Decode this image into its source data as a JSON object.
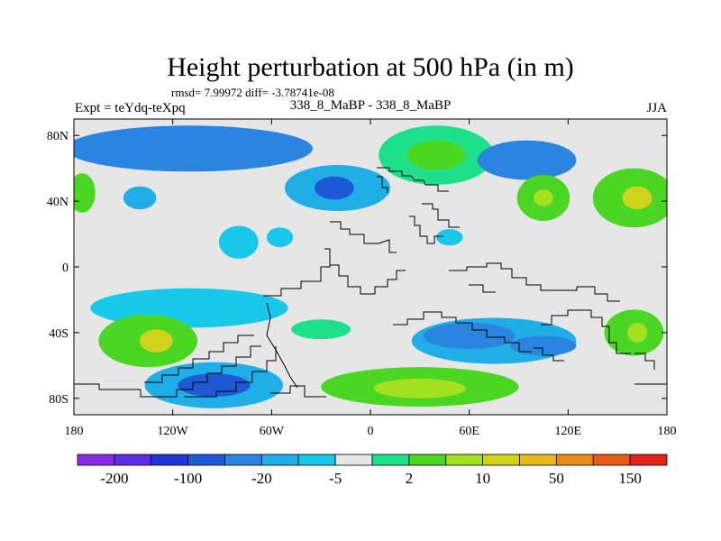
{
  "chart_data": {
    "type": "heatmap",
    "title": "Height perturbation at 500 hPa (in m)",
    "stats_label": "rmsd= 7.99972 diff= -3.78741e-08",
    "left_label": "Expt = teYdq-teXpq",
    "center_label": "338_8_MaBP - 338_8_MaBP",
    "right_label": "JJA",
    "xlim": [
      -180,
      180
    ],
    "ylim": [
      -90,
      90
    ],
    "x_ticks": [
      {
        "value": -180,
        "label": "180"
      },
      {
        "value": -120,
        "label": "120W"
      },
      {
        "value": -60,
        "label": "60W"
      },
      {
        "value": 0,
        "label": "0"
      },
      {
        "value": 60,
        "label": "60E"
      },
      {
        "value": 120,
        "label": "120E"
      },
      {
        "value": 180,
        "label": "180"
      }
    ],
    "y_ticks": [
      {
        "value": 80,
        "label": "80N"
      },
      {
        "value": 40,
        "label": "40N"
      },
      {
        "value": 0,
        "label": "0"
      },
      {
        "value": -40,
        "label": "40S"
      },
      {
        "value": -80,
        "label": "80S"
      }
    ],
    "colorbar": {
      "colors": [
        "#8a2be2",
        "#5a2ee0",
        "#2436d8",
        "#1f5ad6",
        "#2a85e0",
        "#20aee6",
        "#18c8e8",
        "#e6e6e6",
        "#1ee08a",
        "#4cd624",
        "#a2e020",
        "#cfd41a",
        "#e6b81c",
        "#e88a1a",
        "#e85a18",
        "#e0241a"
      ],
      "labels": [
        {
          "index": 1,
          "text": "-200"
        },
        {
          "index": 3,
          "text": "-100"
        },
        {
          "index": 5,
          "text": "-20"
        },
        {
          "index": 7,
          "text": "-5"
        },
        {
          "index": 9,
          "text": "2"
        },
        {
          "index": 11,
          "text": "10"
        },
        {
          "index": 13,
          "text": "50"
        },
        {
          "index": 15,
          "text": "150"
        }
      ]
    },
    "features": [
      {
        "name": "arctic-band-west",
        "lon": -110,
        "lat": 72,
        "rlon": 75,
        "rlat": 14,
        "level": -3
      },
      {
        "name": "arctic-high-east",
        "lon": 40,
        "lat": 68,
        "rlon": 35,
        "rlat": 18,
        "level": 1
      },
      {
        "name": "arctic-high-east-core",
        "lon": 40,
        "lat": 68,
        "rlon": 18,
        "rlat": 9,
        "level": 2
      },
      {
        "name": "north-atlantic-low",
        "lon": -20,
        "lat": 48,
        "rlon": 32,
        "rlat": 14,
        "level": -2
      },
      {
        "name": "north-atlantic-low-core",
        "lon": -22,
        "lat": 48,
        "rlon": 12,
        "rlat": 7,
        "level": -4
      },
      {
        "name": "asia-low",
        "lon": 95,
        "lat": 65,
        "rlon": 30,
        "rlat": 12,
        "level": -3
      },
      {
        "name": "north-pacific-high",
        "lon": 160,
        "lat": 42,
        "rlon": 25,
        "rlat": 18,
        "level": 2
      },
      {
        "name": "north-pacific-high-core",
        "lon": 162,
        "lat": 42,
        "rlon": 9,
        "rlat": 7,
        "level": 4
      },
      {
        "name": "west-pacific-high",
        "lon": 105,
        "lat": 42,
        "rlon": 16,
        "rlat": 14,
        "level": 2
      },
      {
        "name": "west-pacific-core",
        "lon": 105,
        "lat": 42,
        "rlon": 6,
        "rlat": 5,
        "level": 3
      },
      {
        "name": "dateline-high-west",
        "lon": -175,
        "lat": 45,
        "rlon": 8,
        "rlat": 12,
        "level": 2
      },
      {
        "name": "na-low",
        "lon": -140,
        "lat": 42,
        "rlon": 10,
        "rlat": 7,
        "level": -2
      },
      {
        "name": "tropical-low-1",
        "lon": -80,
        "lat": 15,
        "rlon": 12,
        "rlat": 10,
        "level": -1
      },
      {
        "name": "tropical-low-2",
        "lon": -55,
        "lat": 18,
        "rlon": 8,
        "rlat": 6,
        "level": -1
      },
      {
        "name": "tropical-low-3",
        "lon": 48,
        "lat": 18,
        "rlon": 8,
        "rlat": 5,
        "level": -1
      },
      {
        "name": "south-band-1",
        "lon": -110,
        "lat": -25,
        "rlon": 60,
        "rlat": 12,
        "level": -1
      },
      {
        "name": "south-band-2",
        "lon": 75,
        "lat": -45,
        "rlon": 50,
        "rlat": 14,
        "level": -2
      },
      {
        "name": "south-low-core-2",
        "lon": 60,
        "lat": -42,
        "rlon": 28,
        "rlat": 8,
        "level": -3
      },
      {
        "name": "south-low-core-3",
        "lon": 105,
        "lat": -48,
        "rlon": 20,
        "rlat": 6,
        "level": -3
      },
      {
        "name": "se-pacific-high",
        "lon": -135,
        "lat": -45,
        "rlon": 30,
        "rlat": 16,
        "level": 2
      },
      {
        "name": "se-pacific-high-core",
        "lon": -130,
        "lat": -45,
        "rlon": 10,
        "rlat": 7,
        "level": 4
      },
      {
        "name": "sw-pacific-high",
        "lon": 160,
        "lat": -40,
        "rlon": 18,
        "rlat": 14,
        "level": 2
      },
      {
        "name": "sw-pacific-core",
        "lon": 162,
        "lat": -40,
        "rlon": 6,
        "rlat": 6,
        "level": 3
      },
      {
        "name": "antarctic-low",
        "lon": -95,
        "lat": -72,
        "rlon": 42,
        "rlat": 14,
        "level": -2
      },
      {
        "name": "antarctic-low-core",
        "lon": -95,
        "lat": -72,
        "rlon": 22,
        "rlat": 7,
        "level": -4
      },
      {
        "name": "antarctic-high",
        "lon": 30,
        "lat": -73,
        "rlon": 60,
        "rlat": 12,
        "level": 2
      },
      {
        "name": "antarctic-high-core",
        "lon": 30,
        "lat": -74,
        "rlon": 28,
        "rlat": 6,
        "level": 3
      },
      {
        "name": "indian-high",
        "lon": -30,
        "lat": -38,
        "rlon": 18,
        "rlat": 6,
        "level": 1
      }
    ]
  }
}
